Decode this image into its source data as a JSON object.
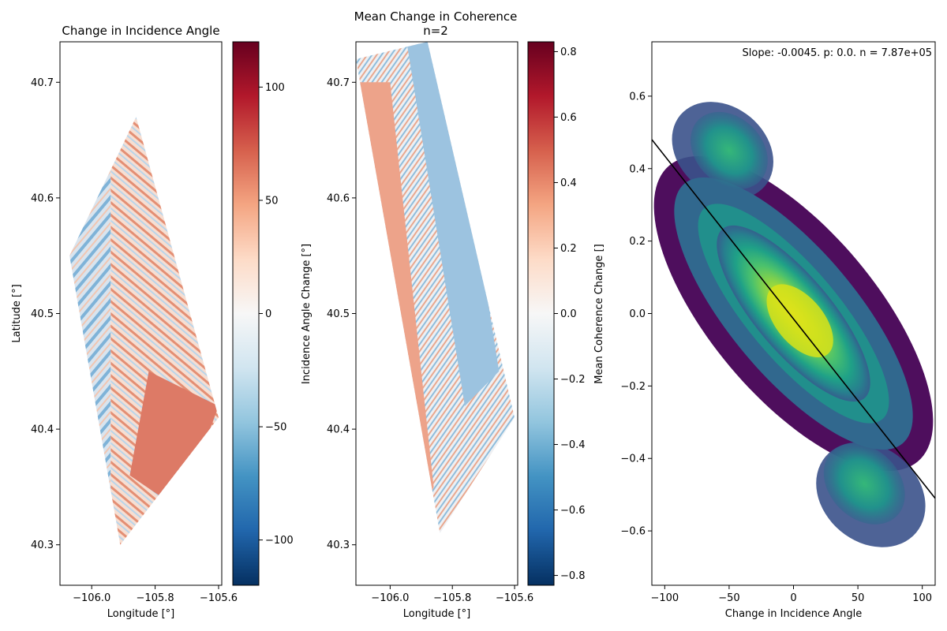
{
  "chart_data": [
    {
      "type": "heatmap",
      "title": "Change in Incidence Angle",
      "xlabel": "Longitude [°]",
      "ylabel": "Latitude [°]",
      "xlim": [
        -106.1,
        -105.59
      ],
      "ylim": [
        40.265,
        40.735
      ],
      "xticks": [
        -106.0,
        -105.8,
        -105.6
      ],
      "xtick_labels": [
        "−106.0",
        "−105.8",
        "−105.6"
      ],
      "yticks": [
        40.3,
        40.4,
        40.5,
        40.6,
        40.7
      ],
      "ytick_labels": [
        "40.3",
        "40.4",
        "40.5",
        "40.6",
        "40.7"
      ],
      "footprint_lonlat": [
        [
          -105.86,
          40.67
        ],
        [
          -105.6,
          40.41
        ],
        [
          -105.91,
          40.3
        ],
        [
          -106.07,
          40.55
        ]
      ],
      "colormap": "RdBu_r",
      "colorbar": {
        "label": "Incidence Angle Change [°]",
        "range": [
          -120,
          120
        ],
        "ticks": [
          100,
          50,
          0,
          -50,
          -100
        ],
        "tick_labels": [
          "100",
          "50",
          "0",
          "−50",
          "−100"
        ]
      }
    },
    {
      "type": "heatmap",
      "title_lines": [
        "Mean Change in Coherence",
        "n=2"
      ],
      "xlabel": "Longitude [°]",
      "ylabel": "",
      "xlim": [
        -106.11,
        -105.59
      ],
      "ylim": [
        40.265,
        40.735
      ],
      "xticks": [
        -106.0,
        -105.8,
        -105.6
      ],
      "xtick_labels": [
        "−106.0",
        "−105.8",
        "−105.6"
      ],
      "yticks": [
        40.3,
        40.4,
        40.5,
        40.6,
        40.7
      ],
      "ytick_labels": [
        "40.3",
        "40.4",
        "40.5",
        "40.6",
        "40.7"
      ],
      "footprint_lonlat": [
        [
          -106.11,
          40.72
        ],
        [
          -105.88,
          40.735
        ],
        [
          -105.6,
          40.41
        ],
        [
          -105.84,
          40.31
        ]
      ],
      "colormap": "RdBu_r",
      "colorbar": {
        "label": "Mean Coherence Change []",
        "range": [
          -0.83,
          0.83
        ],
        "ticks": [
          0.8,
          0.6,
          0.4,
          0.2,
          0.0,
          -0.2,
          -0.4,
          -0.6,
          -0.8
        ],
        "tick_labels": [
          "0.8",
          "0.6",
          "0.4",
          "0.2",
          "0.0",
          "−0.2",
          "−0.4",
          "−0.6",
          "−0.8"
        ]
      }
    },
    {
      "type": "heatmap",
      "subtype": "2d-histogram",
      "xlabel": "Change in Incidence Angle",
      "ylabel": "",
      "xlim": [
        -110,
        110
      ],
      "ylim": [
        -0.75,
        0.75
      ],
      "xticks": [
        -100,
        -50,
        0,
        50,
        100
      ],
      "xtick_labels": [
        "−100",
        "−50",
        "0",
        "50",
        "100"
      ],
      "yticks": [
        0.6,
        0.4,
        0.2,
        0.0,
        -0.2,
        -0.4,
        -0.6
      ],
      "ytick_labels": [
        "0.6",
        "0.4",
        "0.2",
        "0.0",
        "−0.2",
        "−0.4",
        "−0.6"
      ],
      "colormap": "viridis",
      "annotation": "Slope: -0.0045. p: 0.0. n = 7.87e+05",
      "slope": -0.0045,
      "n": 787000,
      "fit_line": {
        "x": [
          -110,
          110
        ],
        "y": [
          0.48,
          -0.51
        ],
        "color": "#000000"
      }
    }
  ]
}
